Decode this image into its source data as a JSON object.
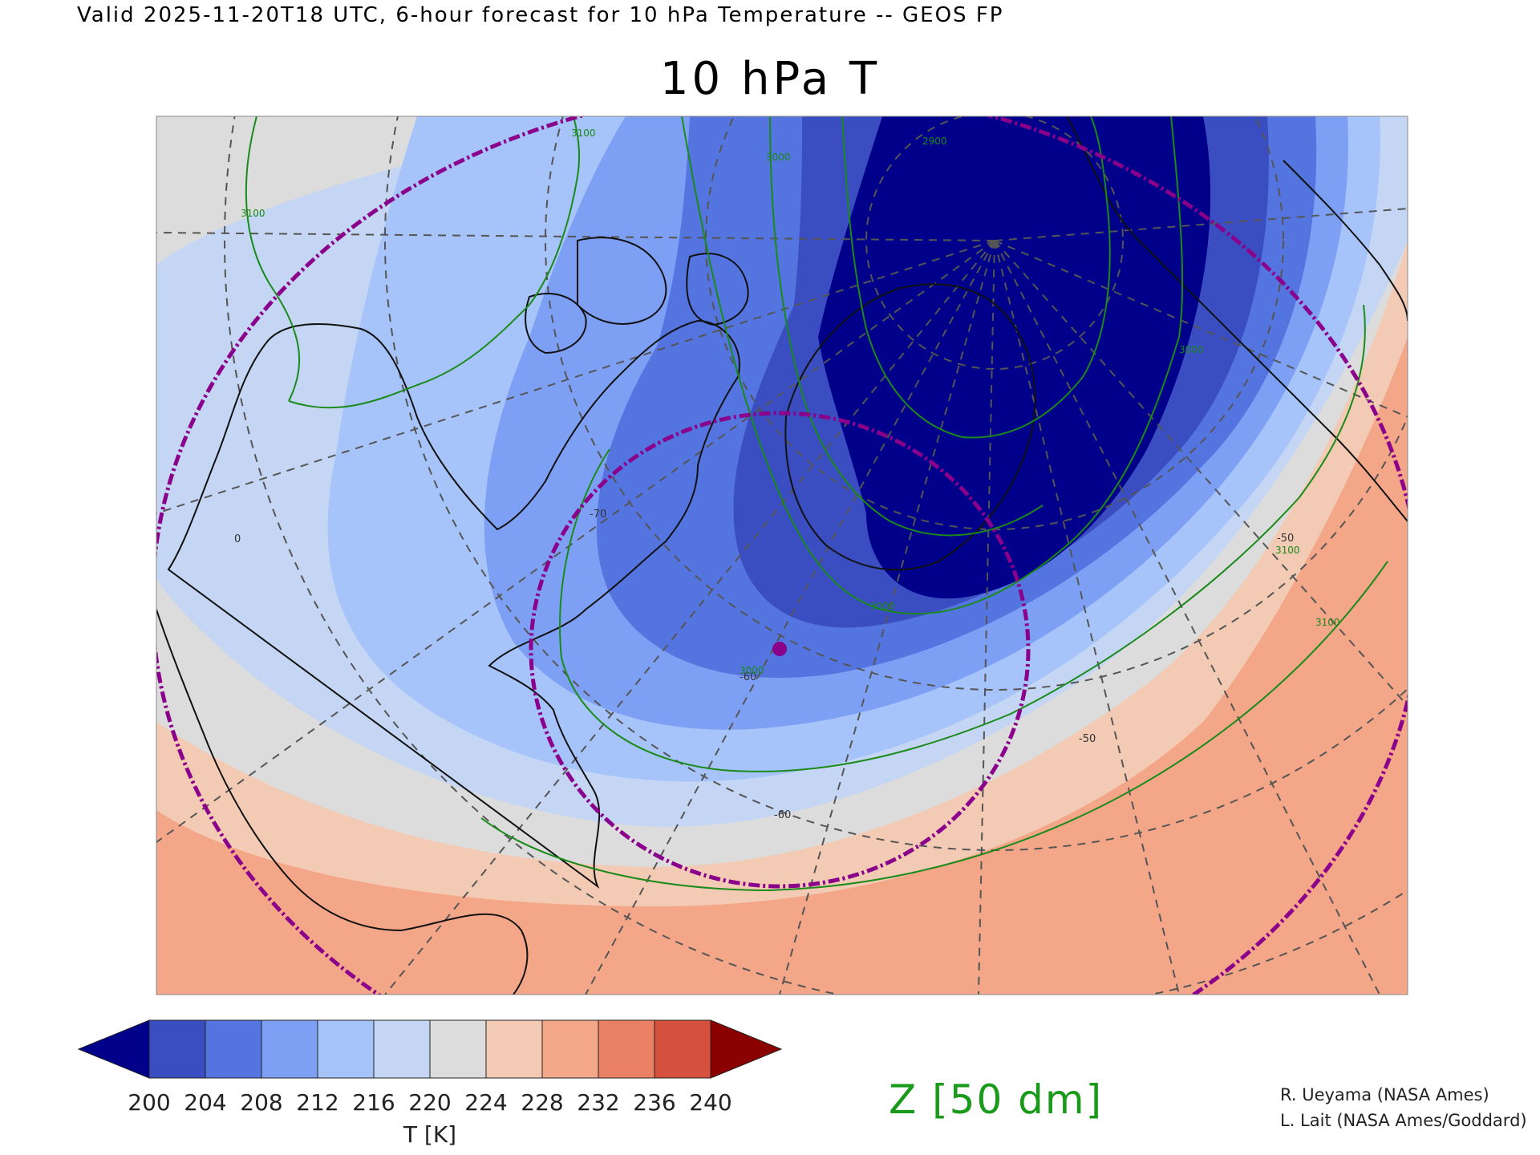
{
  "header": "Valid 2025-11-20T18 UTC, 6-hour forecast for 10 hPa Temperature -- GEOS FP",
  "title": "10 hPa T",
  "colorbar": {
    "under_color": "#00008b",
    "over_color": "#8b0000",
    "bins": [
      {
        "color": "#3a4ec2"
      },
      {
        "color": "#5474e0"
      },
      {
        "color": "#7ea0f4"
      },
      {
        "color": "#a6c3fa"
      },
      {
        "color": "#c4d6f4"
      },
      {
        "color": "#dcdcdc"
      },
      {
        "color": "#f3cbb4"
      },
      {
        "color": "#f4a688"
      },
      {
        "color": "#ea8064"
      },
      {
        "color": "#d6503e"
      }
    ],
    "tick_labels": [
      "200",
      "204",
      "208",
      "212",
      "216",
      "220",
      "224",
      "228",
      "232",
      "236",
      "240"
    ],
    "unit": "T [K]"
  },
  "contour_legend": "Z [50 dm]",
  "contour_labels": [
    "3100",
    "3100",
    "3000",
    "2900",
    "3000",
    "3000",
    "3100",
    "3100",
    "3000"
  ],
  "meridian_labels": [
    "0",
    "-50",
    "-60",
    "-50",
    "-70",
    "-60"
  ],
  "credits": [
    "R. Ueyama (NASA Ames)",
    "L. Lait (NASA Ames/Goddard)"
  ]
}
